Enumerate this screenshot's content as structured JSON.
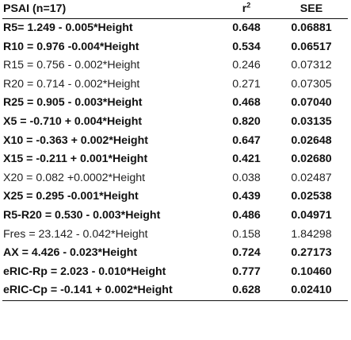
{
  "header": {
    "col_equation": "PSAI (n=17)",
    "col_r2_base": "r",
    "col_r2_sup": "2",
    "col_see": "SEE"
  },
  "rows": [
    {
      "equation": "R5= 1.249 - 0.005*Height",
      "r2": "0.648",
      "see": "0.06881",
      "bold": true
    },
    {
      "equation": "R10 = 0.976 -0.004*Height",
      "r2": "0.534",
      "see": "0.06517",
      "bold": true
    },
    {
      "equation": "R15 = 0.756 - 0.002*Height",
      "r2": "0.246",
      "see": "0.07312",
      "bold": false
    },
    {
      "equation": "R20 = 0.714 - 0.002*Height",
      "r2": "0.271",
      "see": "0.07305",
      "bold": false
    },
    {
      "equation": "R25 = 0.905  - 0.003*Height",
      "r2": "0.468",
      "see": "0.07040",
      "bold": true
    },
    {
      "equation": "X5 = -0.710 + 0.004*Height",
      "r2": "0.820",
      "see": "0.03135",
      "bold": true
    },
    {
      "equation": "X10 = -0.363 + 0.002*Height",
      "r2": "0.647",
      "see": "0.02648",
      "bold": true
    },
    {
      "equation": "X15 = -0.211 + 0.001*Height",
      "r2": "0.421",
      "see": "0.02680",
      "bold": true
    },
    {
      "equation": "X20 = 0.082 +0.0002*Height",
      "r2": "0.038",
      "see": "0.02487",
      "bold": false
    },
    {
      "equation": "X25 = 0.295 -0.001*Height",
      "r2": "0.439",
      "see": "0.02538",
      "bold": true
    },
    {
      "equation": "R5-R20 = 0.530 - 0.003*Height",
      "r2": "0.486",
      "see": "0.04971",
      "bold": true
    },
    {
      "equation": "Fres = 23.142 - 0.042*Height",
      "r2": "0.158",
      "see": "1.84298",
      "bold": false
    },
    {
      "equation": "AX = 4.426 - 0.023*Height",
      "r2": "0.724",
      "see": "0.27173",
      "bold": true
    },
    {
      "equation": "eRIC-Rp = 2.023 - 0.010*Height",
      "r2": "0.777",
      "see": "0.10460",
      "bold": true
    },
    {
      "equation": "eRIC-Cp = -0.141 + 0.002*Height",
      "r2": "0.628",
      "see": "0.02410",
      "bold": true
    }
  ]
}
